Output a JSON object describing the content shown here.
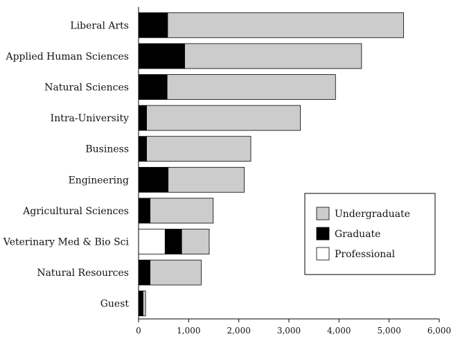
{
  "colors": {
    "undergraduate": "#cccccc",
    "graduate": "#000000",
    "professional": "#ffffff",
    "axis": "#000000"
  },
  "chart_data": {
    "type": "bar",
    "orientation": "horizontal",
    "stacked": true,
    "categories": [
      "Liberal Arts",
      "Applied Human Sciences",
      "Natural Sciences",
      "Intra-University",
      "Business",
      "Engineering",
      "Agricultural Sciences",
      "Veterinary Med & Bio Sci",
      "Natural Resources",
      "Guest"
    ],
    "series": [
      {
        "name": "Professional",
        "color_key": "professional",
        "values": [
          0,
          0,
          0,
          0,
          0,
          0,
          0,
          530,
          0,
          0
        ]
      },
      {
        "name": "Graduate",
        "color_key": "graduate",
        "values": [
          580,
          920,
          570,
          160,
          160,
          590,
          230,
          330,
          230,
          90
        ]
      },
      {
        "name": "Undergraduate",
        "color_key": "undergraduate",
        "values": [
          4710,
          3530,
          3360,
          3070,
          2080,
          1520,
          1260,
          550,
          1020,
          50
        ]
      }
    ],
    "legend_order": [
      "Undergraduate",
      "Graduate",
      "Professional"
    ],
    "legend_position": "lower-right",
    "xlim": [
      0,
      6000
    ],
    "xticks": [
      "0",
      "1,000",
      "2,000",
      "3,000",
      "4,000",
      "5,000",
      "6,000"
    ],
    "title": "",
    "xlabel": "",
    "ylabel": "",
    "grid": false
  }
}
